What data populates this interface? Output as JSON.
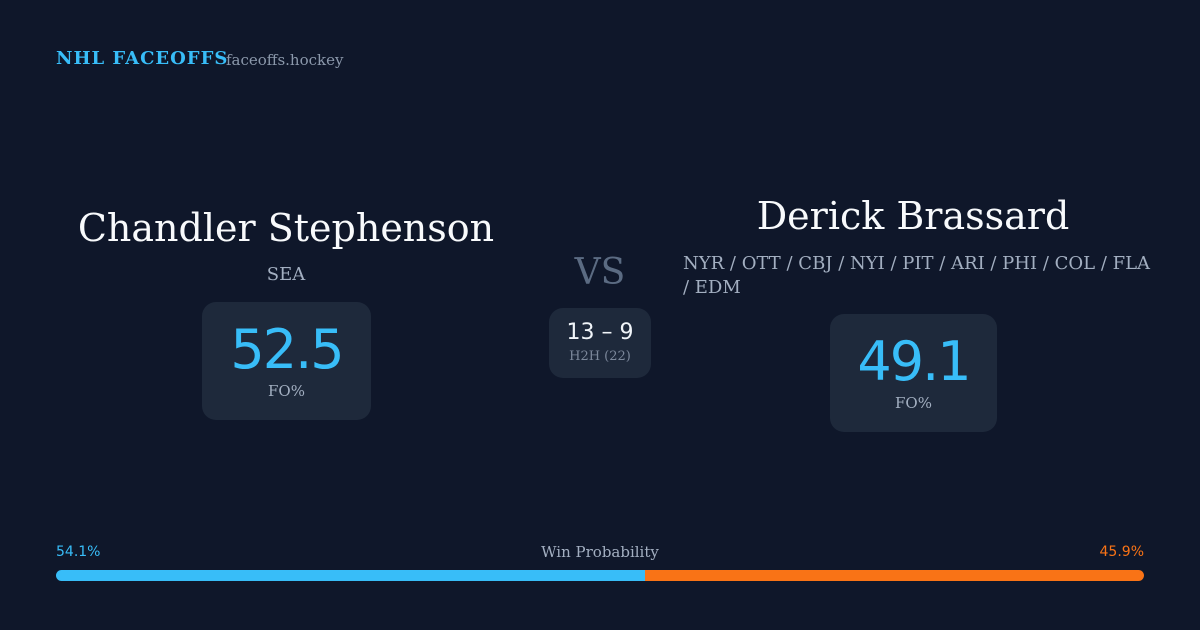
{
  "header": {
    "brand": "NHL FACEOFFS",
    "site": "faceoffs.hockey"
  },
  "players": [
    {
      "name": "Chandler Stephenson",
      "teams": "SEA",
      "fo_value": 52.5,
      "fo_label": "FO%"
    },
    {
      "name": "Derick Brassard",
      "teams": "NYR / OTT / CBJ / NYI / PIT / ARI / PHI / COL / FLA / EDM",
      "fo_value": 49.1,
      "fo_label": "FO%"
    }
  ],
  "versus": "VS",
  "h2h": {
    "score": "13 – 9",
    "label": "H2H (22)"
  },
  "win_probability": {
    "title": "Win Probability",
    "values": [
      54.1,
      45.9
    ],
    "value_labels": [
      "54.1%",
      "45.9%"
    ],
    "colors": [
      "#38bdf8",
      "#f97316"
    ]
  }
}
